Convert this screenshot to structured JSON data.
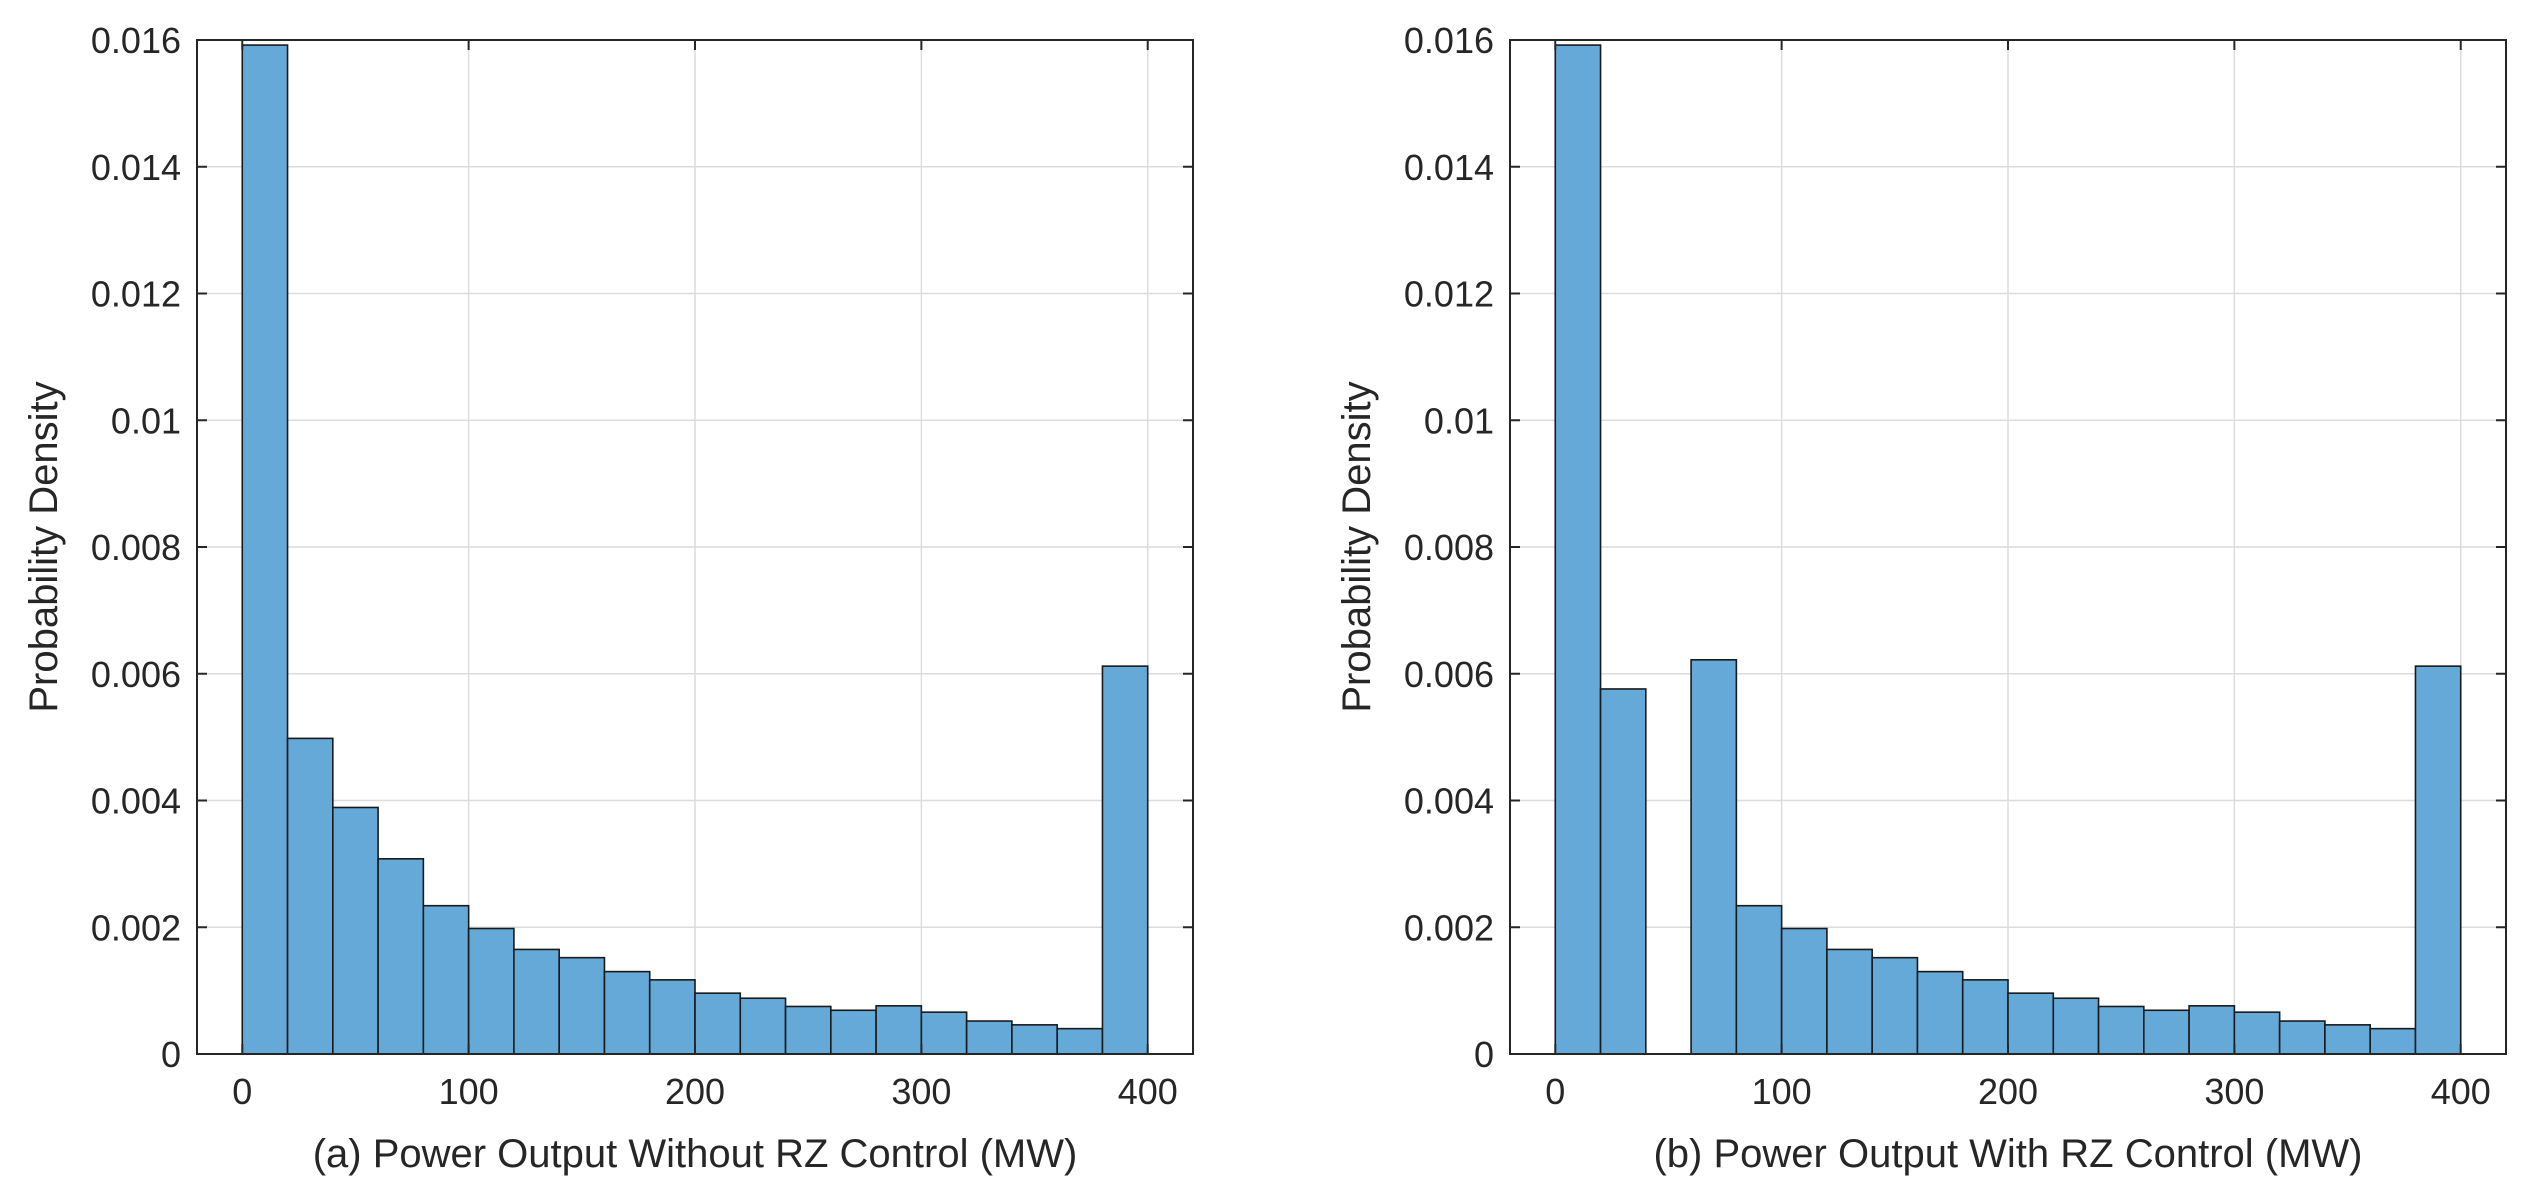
{
  "chart_data": [
    {
      "type": "bar",
      "title": "",
      "xlabel": "(a) Power Output Without RZ Control (MW)",
      "ylabel": "Probability Density",
      "xlim": [
        -20,
        420
      ],
      "ylim": [
        0,
        0.016
      ],
      "xticks": [
        0,
        100,
        200,
        300,
        400
      ],
      "xtick_labels": [
        "0",
        "100",
        "200",
        "300",
        "400"
      ],
      "yticks": [
        0,
        0.002,
        0.004,
        0.006,
        0.008,
        0.01,
        0.012,
        0.014,
        0.016
      ],
      "ytick_labels": [
        "0",
        "0.002",
        "0.004",
        "0.006",
        "0.008",
        "0.01",
        "0.012",
        "0.014",
        "0.016"
      ],
      "grid": true,
      "bin_width": 20,
      "bin_starts": [
        0,
        20,
        40,
        60,
        80,
        100,
        120,
        140,
        160,
        180,
        200,
        220,
        240,
        260,
        280,
        300,
        320,
        340,
        360,
        380
      ],
      "values": [
        0.01592,
        0.00498,
        0.00389,
        0.00308,
        0.00234,
        0.00198,
        0.00165,
        0.00152,
        0.0013,
        0.00117,
        0.00096,
        0.00088,
        0.00075,
        0.00069,
        0.00076,
        0.00066,
        0.00052,
        0.00046,
        0.0004,
        0.00612
      ],
      "bar_color": "#65a9d8",
      "edge_color": "#1a1a1a"
    },
    {
      "type": "bar",
      "title": "",
      "xlabel": "(b) Power Output With RZ Control (MW)",
      "ylabel": "Probability Density",
      "xlim": [
        -20,
        420
      ],
      "ylim": [
        0,
        0.016
      ],
      "xticks": [
        0,
        100,
        200,
        300,
        400
      ],
      "xtick_labels": [
        "0",
        "100",
        "200",
        "300",
        "400"
      ],
      "yticks": [
        0,
        0.002,
        0.004,
        0.006,
        0.008,
        0.01,
        0.012,
        0.014,
        0.016
      ],
      "ytick_labels": [
        "0",
        "0.002",
        "0.004",
        "0.006",
        "0.008",
        "0.01",
        "0.012",
        "0.014",
        "0.016"
      ],
      "grid": true,
      "bin_width": 20,
      "bin_starts": [
        0,
        20,
        40,
        60,
        80,
        100,
        120,
        140,
        160,
        180,
        200,
        220,
        240,
        260,
        280,
        300,
        320,
        340,
        360,
        380
      ],
      "values": [
        0.01592,
        0.00576,
        0,
        0.00622,
        0.00234,
        0.00198,
        0.00165,
        0.00152,
        0.0013,
        0.00117,
        0.00096,
        0.00088,
        0.00075,
        0.00069,
        0.00076,
        0.00066,
        0.00052,
        0.00046,
        0.0004,
        0.00612
      ],
      "bar_color": "#65a9d8",
      "edge_color": "#1a1a1a"
    }
  ]
}
